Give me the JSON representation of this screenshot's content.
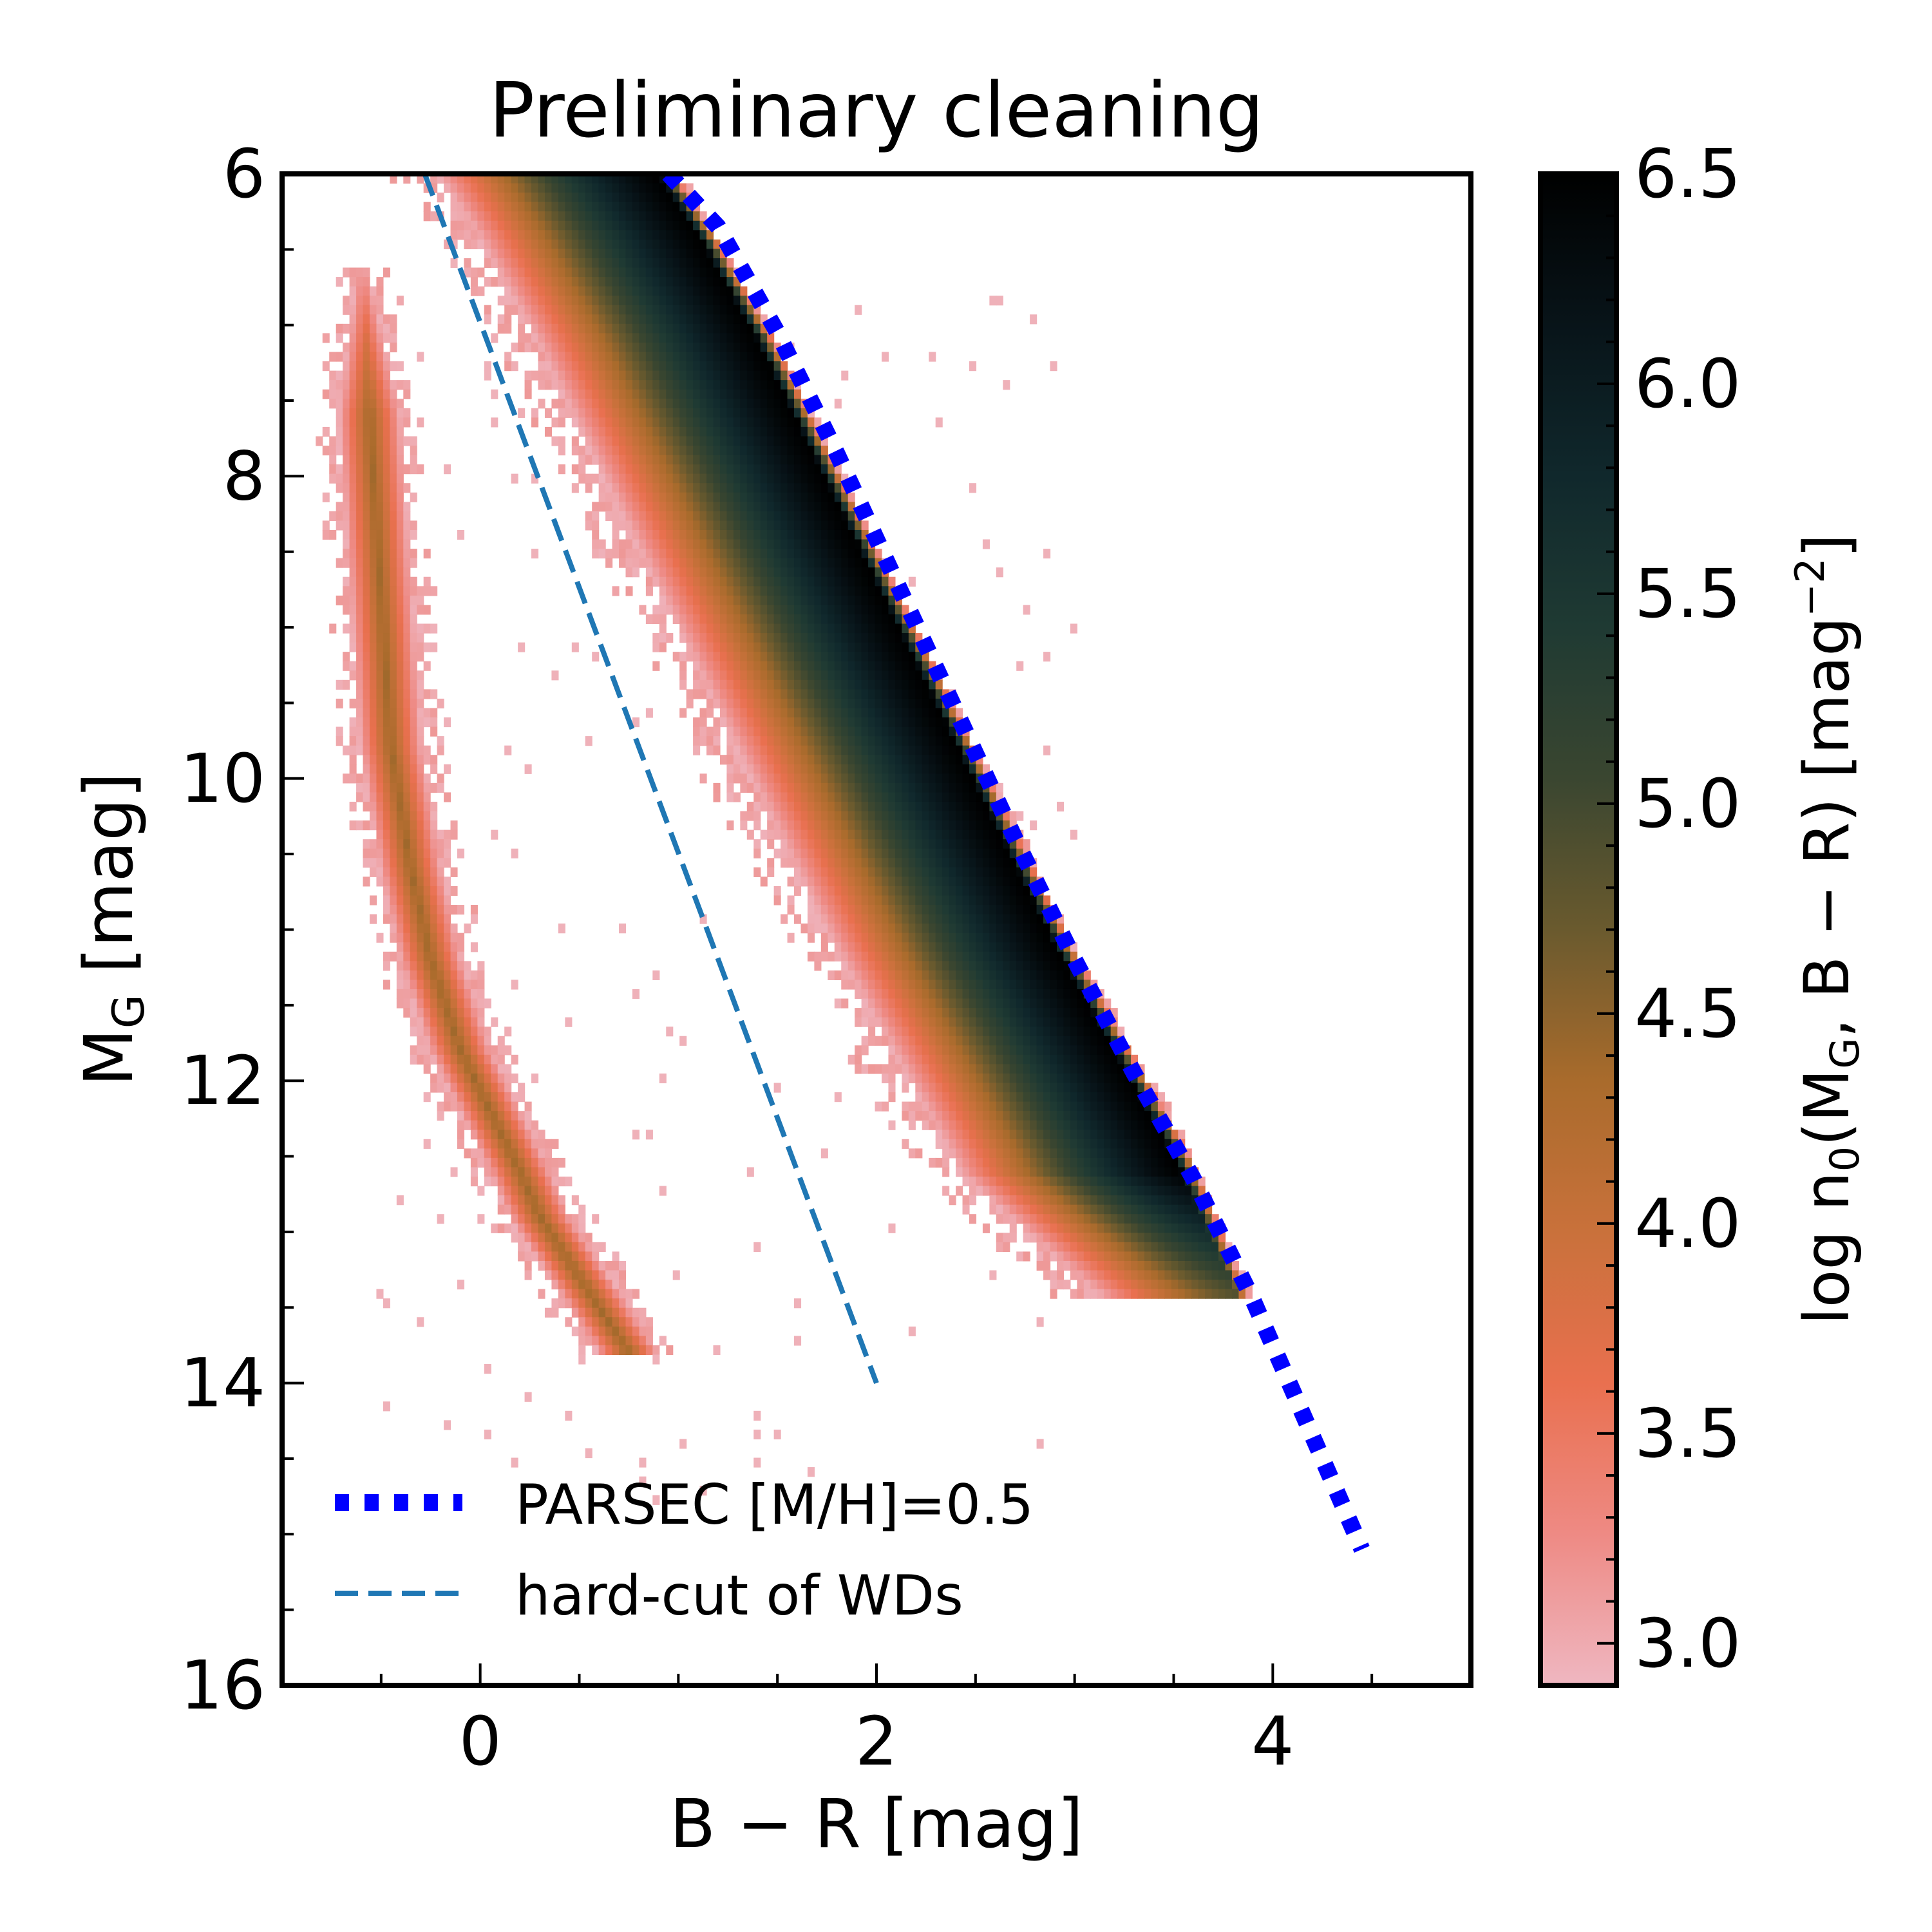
{
  "chart_data": {
    "type": "heatmap",
    "title": "Preliminary cleaning",
    "xlabel": "B − R [mag]",
    "ylabel": "M",
    "ylabel_sub": "G",
    "ylabel_unit": " [mag]",
    "xlim": [
      -1.0,
      5.0
    ],
    "ylim": [
      16,
      6
    ],
    "y_inverted": true,
    "x_ticks": [
      0,
      2,
      4
    ],
    "x_tick_labels": [
      "0",
      "2",
      "4"
    ],
    "y_ticks": [
      6,
      8,
      10,
      12,
      14,
      16
    ],
    "y_tick_labels": [
      "6",
      "8",
      "10",
      "12",
      "14",
      "16"
    ],
    "colorbar": {
      "label_parts": [
        "log n",
        "0",
        "(M",
        "G",
        ", B − R) [mag",
        "−2",
        "]"
      ],
      "range": [
        2.9,
        6.5
      ],
      "ticks": [
        3.0,
        3.5,
        4.0,
        4.5,
        5.0,
        5.5,
        6.0,
        6.5
      ],
      "tick_labels": [
        "3.0",
        "3.5",
        "4.0",
        "4.5",
        "5.0",
        "5.5",
        "6.0",
        "6.5"
      ],
      "colors": [
        "#efb7c1",
        "#ee8a84",
        "#e9704f",
        "#c9713b",
        "#a96b2c",
        "#6a5a2e",
        "#3a4630",
        "#1f3a33",
        "#10282c",
        "#081419",
        "#000000"
      ]
    },
    "main_sequence_ridge": {
      "x": [
        0.9,
        1.1,
        1.4,
        1.7,
        2.0,
        2.3,
        2.6,
        2.9,
        3.2,
        3.5,
        3.75
      ],
      "y": [
        6.0,
        6.4,
        7.1,
        7.9,
        8.7,
        9.5,
        10.3,
        11.1,
        11.8,
        12.5,
        13.2
      ],
      "peak_log_density": 6.5
    },
    "white_dwarf_sequence": {
      "x": [
        -0.58,
        -0.55,
        -0.5,
        -0.45,
        -0.35,
        -0.25,
        -0.1,
        0.05,
        0.2,
        0.3,
        0.4
      ],
      "y": [
        7.0,
        7.8,
        8.8,
        9.8,
        10.6,
        11.2,
        11.8,
        12.2,
        12.6,
        12.9,
        13.1
      ],
      "peak_log_density": 4.4
    },
    "series": [
      {
        "name": "PARSEC [M/H]=0.5",
        "style": "dotted",
        "color": "#0000ff",
        "x": [
          0.95,
          1.2,
          1.5,
          1.8,
          2.1,
          2.4,
          2.7,
          3.0,
          3.3,
          3.6,
          3.9,
          4.15,
          4.45
        ],
        "y": [
          6.0,
          6.35,
          7.05,
          7.85,
          8.7,
          9.55,
          10.4,
          11.2,
          11.95,
          12.65,
          13.45,
          14.2,
          15.1
        ]
      },
      {
        "name": "hard-cut of WDs",
        "style": "dashed",
        "color": "#1f77b4",
        "x": [
          -0.28,
          2.0
        ],
        "y": [
          6.0,
          14.0
        ]
      }
    ],
    "legend_position": "lower-left",
    "tick_direction": "in",
    "grid": false
  }
}
